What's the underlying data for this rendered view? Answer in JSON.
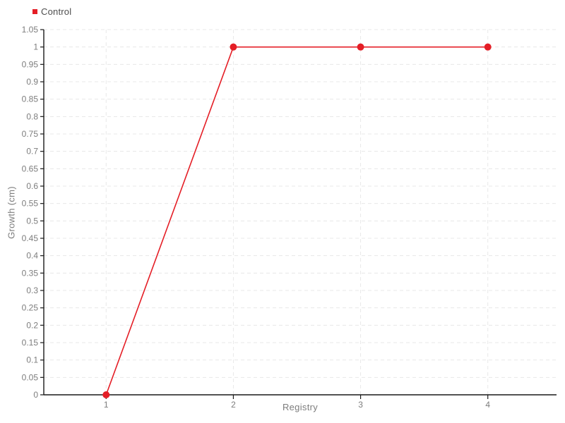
{
  "chart_data": {
    "type": "line",
    "title": "",
    "xlabel": "Registry",
    "ylabel": "Growth (cm)",
    "x": [
      1,
      2,
      3,
      4
    ],
    "series": [
      {
        "name": "Control",
        "color": "#e41e26",
        "values": [
          0,
          1,
          1,
          1
        ]
      }
    ],
    "xlim": [
      0.51,
      4.54
    ],
    "ylim": [
      0,
      1.05
    ],
    "xticks": {
      "values": [
        1,
        2,
        3,
        4
      ],
      "labels": [
        "1",
        "2",
        "3",
        "4"
      ]
    },
    "yticks": {
      "values": [
        0,
        0.05,
        0.1,
        0.15,
        0.2,
        0.25,
        0.3,
        0.35,
        0.4,
        0.45,
        0.5,
        0.55,
        0.6,
        0.65,
        0.7,
        0.75,
        0.8,
        0.85,
        0.9,
        0.95,
        1,
        1.05
      ],
      "labels": [
        "0",
        "0.05",
        "0.1",
        "0.15",
        "0.2",
        "0.25",
        "0.3",
        "0.35",
        "0.4",
        "0.45",
        "0.5",
        "0.55",
        "0.6",
        "0.65",
        "0.7",
        "0.75",
        "0.8",
        "0.85",
        "0.9",
        "0.95",
        "1",
        "1.05"
      ]
    },
    "grid": {
      "style": "dashed",
      "orientation": "both"
    },
    "legend": {
      "position": "top-left",
      "items": [
        {
          "label": "Control",
          "color": "#e41e26"
        }
      ]
    }
  },
  "theme": {
    "background": "#ffffff",
    "axis_color": "#1a1a1a",
    "grid_color": "#e8e8e8",
    "tick_text_color": "#7d7d7d",
    "axis_label_color": "#7d7d7d",
    "legend_text_color": "#4d4d4d",
    "series_color": "#e41e26"
  }
}
